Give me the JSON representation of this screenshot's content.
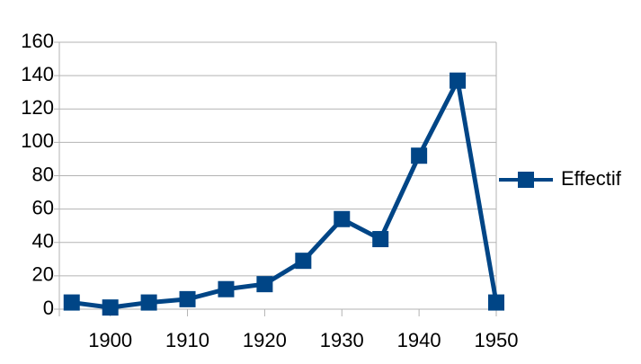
{
  "chart_data": {
    "type": "line",
    "x": [
      1895,
      1900,
      1905,
      1910,
      1915,
      1920,
      1925,
      1930,
      1935,
      1940,
      1945,
      1950
    ],
    "series": [
      {
        "name": "Effectif",
        "color": "#004586",
        "values": [
          4,
          1,
          4,
          6,
          12,
          15,
          29,
          54,
          42,
          92,
          137,
          4
        ]
      }
    ],
    "xlim": [
      1893.4,
      1950
    ],
    "xticks": [
      1900,
      1910,
      1920,
      1930,
      1940,
      1950
    ],
    "ylim": [
      0,
      160
    ],
    "yticks": [
      0,
      20,
      40,
      60,
      80,
      100,
      120,
      140,
      160
    ],
    "grid": true,
    "legend": "right"
  }
}
